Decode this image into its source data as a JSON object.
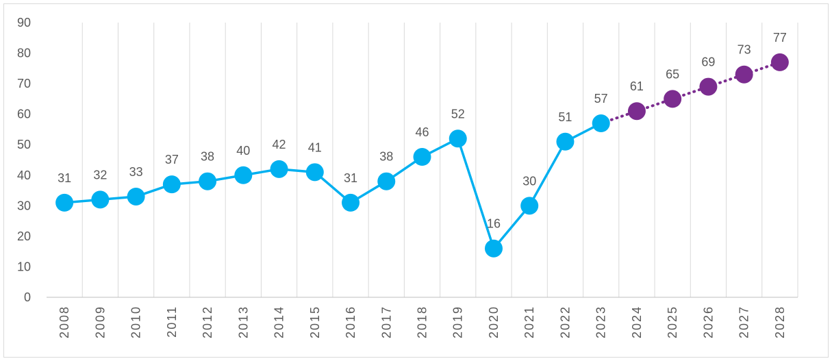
{
  "chart_data": {
    "type": "line",
    "categories": [
      "2008",
      "2009",
      "2010",
      "2011",
      "2012",
      "2013",
      "2014",
      "2015",
      "2016",
      "2017",
      "2018",
      "2019",
      "2020",
      "2021",
      "2022",
      "2023",
      "2024",
      "2025",
      "2026",
      "2027",
      "2028"
    ],
    "series": [
      {
        "color": "#00b0f0",
        "values": [
          31,
          32,
          33,
          37,
          38,
          40,
          42,
          41,
          31,
          38,
          46,
          52,
          16,
          30,
          51,
          57,
          null,
          null,
          null,
          null,
          null
        ]
      },
      {
        "color": "#7b2c8f",
        "values": [
          null,
          null,
          null,
          null,
          null,
          null,
          null,
          null,
          null,
          null,
          null,
          null,
          null,
          null,
          null,
          null,
          61,
          65,
          69,
          73,
          77
        ]
      }
    ],
    "ylim": [
      0,
      90
    ],
    "yticks": [
      0,
      10,
      20,
      30,
      40,
      50,
      60,
      70,
      80,
      90
    ]
  }
}
